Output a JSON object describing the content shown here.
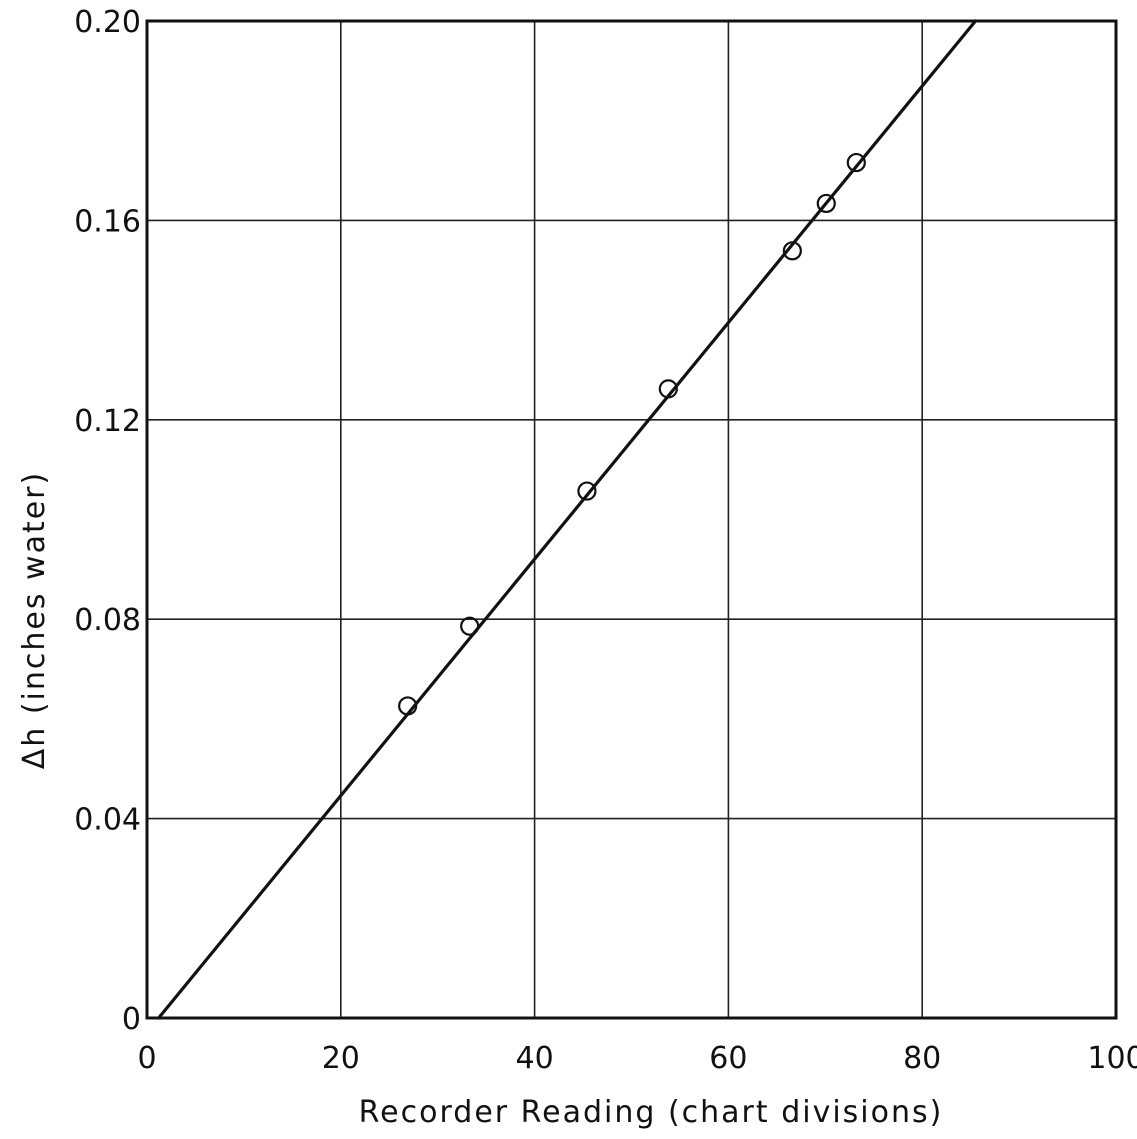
{
  "chart_data": {
    "type": "scatter",
    "xlabel": "Recorder Reading (chart divisions)",
    "ylabel": "Δh (inches water)",
    "xlim": [
      0,
      100
    ],
    "ylim": [
      0,
      0.2
    ],
    "x_ticks": [
      0,
      20,
      40,
      60,
      80,
      100
    ],
    "x_tick_labels": [
      "0",
      "20",
      "40",
      "60",
      "80",
      "100"
    ],
    "y_ticks": [
      0,
      0.04,
      0.08,
      0.12,
      0.16,
      0.2
    ],
    "y_tick_labels": [
      "0",
      "0.04",
      "0.08",
      "0.12",
      "0.16",
      "0.20"
    ],
    "grid": true,
    "series": [
      {
        "marker": "open-circle",
        "points": [
          {
            "x": 26.9,
            "y": 0.0626
          },
          {
            "x": 33.3,
            "y": 0.0786
          },
          {
            "x": 45.4,
            "y": 0.1057
          },
          {
            "x": 53.8,
            "y": 0.1262
          },
          {
            "x": 66.6,
            "y": 0.1539
          },
          {
            "x": 70.1,
            "y": 0.1634
          },
          {
            "x": 73.2,
            "y": 0.1716
          }
        ]
      }
    ],
    "fit_line": {
      "style": "solid",
      "points": [
        {
          "x": 1.2,
          "y": 0.0
        },
        {
          "x": 85.5,
          "y": 0.2
        }
      ]
    }
  }
}
